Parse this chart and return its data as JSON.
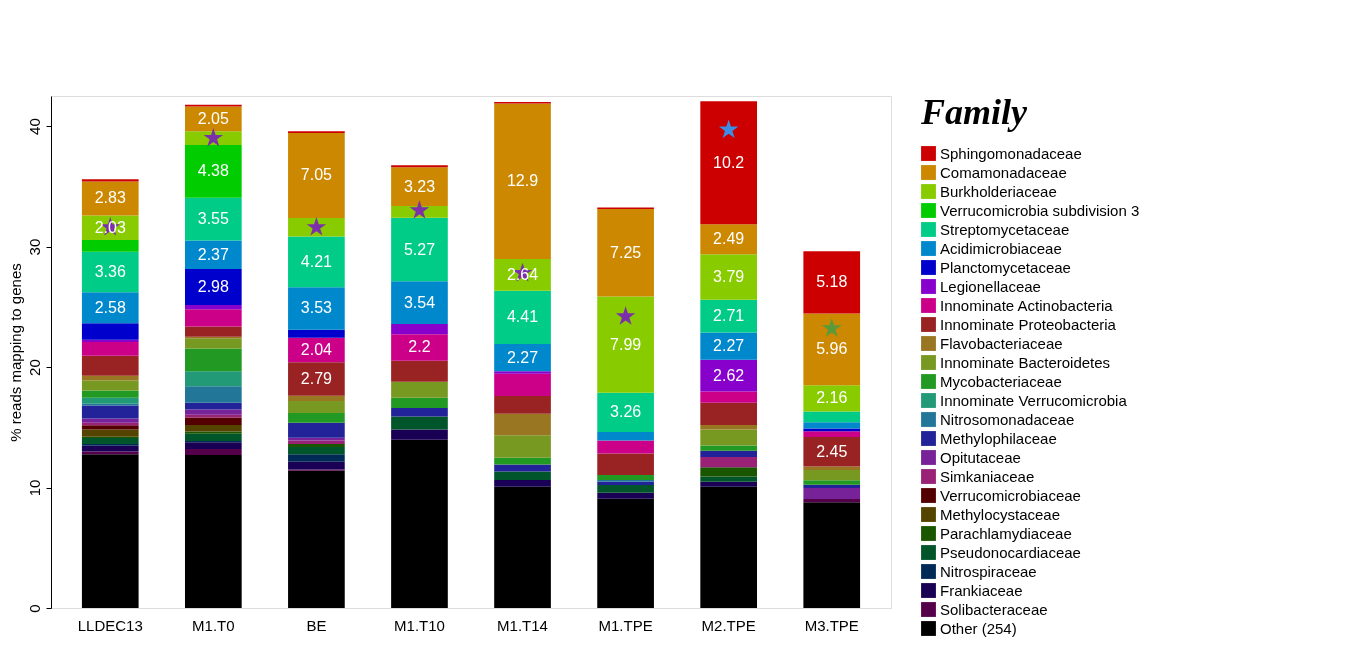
{
  "chart_data": {
    "type": "bar",
    "stacked": true,
    "ylabel": "% reads mapping to genes",
    "legend_title": "Family",
    "legend": "right",
    "grid": false,
    "categories": [
      "LLDEC13",
      "M1.T0",
      "BE",
      "M1.T10",
      "M1.T14",
      "M1.TPE",
      "M2.TPE",
      "M3.TPE"
    ],
    "ylim": [
      0,
      42.5
    ],
    "yticks": [
      0,
      10,
      20,
      30,
      40
    ],
    "series": [
      {
        "name": "Other (254)",
        "color": "#000000",
        "values": [
          12.76,
          12.71,
          11.4,
          13.96,
          10.06,
          9.06,
          10.06,
          8.77
        ]
      },
      {
        "name": "Solibacteraceae",
        "color": "#55004a",
        "values": [
          0.23,
          0.48,
          0.1,
          null,
          null,
          null,
          null,
          0.28
        ]
      },
      {
        "name": "Frankiaceae",
        "color": "#1a0055",
        "values": [
          0.48,
          0.57,
          0.64,
          0.85,
          0.57,
          0.51,
          0.43,
          null
        ]
      },
      {
        "name": "Nitrospiraceae",
        "color": "#002a55",
        "values": [
          0.15,
          0.1,
          0.63,
          null,
          null,
          null,
          null,
          null
        ]
      },
      {
        "name": "Pseudonocardiaceae",
        "color": "#00552a",
        "values": [
          0.5,
          0.6,
          0.6,
          1.08,
          0.71,
          0.63,
          0.43,
          null
        ]
      },
      {
        "name": "Parachlamydiaceae",
        "color": "#1a5500",
        "values": [
          0.1,
          0.2,
          0.25,
          null,
          null,
          null,
          0.77,
          null
        ]
      },
      {
        "name": "Methylocystaceae",
        "color": "#554400",
        "values": [
          0.6,
          0.53,
          null,
          null,
          null,
          null,
          null,
          null
        ]
      },
      {
        "name": "Verrucomicrobiaceae",
        "color": "#550000",
        "values": [
          0.35,
          0.62,
          null,
          null,
          null,
          null,
          null,
          null
        ]
      },
      {
        "name": "Simkaniaceae",
        "color": "#992277",
        "values": [
          0.2,
          0.23,
          0.28,
          null,
          null,
          null,
          0.85,
          null
        ]
      },
      {
        "name": "Opitutaceae",
        "color": "#772299",
        "values": [
          0.35,
          0.43,
          0.23,
          null,
          null,
          null,
          null,
          0.91
        ]
      },
      {
        "name": "Methylophilaceae",
        "color": "#222299",
        "values": [
          1.08,
          0.57,
          1.25,
          0.71,
          0.57,
          0.28,
          0.51,
          0.28
        ]
      },
      {
        "name": "Nitrosomonadaceae",
        "color": "#227799",
        "values": [
          0.15,
          1.36,
          null,
          null,
          null,
          0.14,
          null,
          null
        ]
      },
      {
        "name": "Innominate Verrucomicrobia",
        "color": "#229977",
        "values": [
          0.5,
          1.26,
          null,
          null,
          null,
          null,
          null,
          null
        ]
      },
      {
        "name": "Mycobacteriaceae",
        "color": "#229922",
        "values": [
          0.6,
          1.88,
          0.8,
          0.85,
          0.57,
          0.43,
          0.43,
          0.37
        ]
      },
      {
        "name": "Innominate Bacteroidetes",
        "color": "#779922",
        "values": [
          0.83,
          0.85,
          1.0,
          1.34,
          1.85,
          null,
          1.34,
          0.85
        ]
      },
      {
        "name": "Flavobacteriaceae",
        "color": "#997722",
        "values": [
          0.4,
          0.12,
          0.43,
          null,
          1.79,
          null,
          0.37,
          0.28
        ]
      },
      {
        "name": "Innominate Proteobacteria",
        "color": "#992222",
        "values": [
          1.65,
          0.85,
          2.79,
          1.74,
          1.48,
          1.77,
          1.85,
          2.45
        ],
        "value_labels": [
          null,
          null,
          "2.79",
          null,
          null,
          null,
          null,
          "2.45"
        ]
      },
      {
        "name": "Innominate Actinobacteria",
        "color": "#cc0088",
        "values": [
          1.14,
          1.43,
          2.04,
          2.2,
          1.85,
          1.08,
          0.94,
          0.48
        ],
        "value_labels": [
          null,
          null,
          "2.04",
          "2.2",
          null,
          null,
          null,
          null
        ]
      },
      {
        "name": "Legionellaceae",
        "color": "#8800cc",
        "values": [
          0.2,
          0.37,
          null,
          0.85,
          0.2,
          null,
          2.62,
          null
        ],
        "value_labels": [
          null,
          null,
          null,
          null,
          null,
          null,
          "2.62",
          null
        ]
      },
      {
        "name": "Planctomycetaceae",
        "color": "#0000cc",
        "values": [
          1.37,
          2.98,
          0.66,
          null,
          null,
          null,
          null,
          0.23
        ],
        "value_labels": [
          null,
          "2.98",
          null,
          null,
          null,
          null,
          null,
          null
        ]
      },
      {
        "name": "Acidimicrobiaceae",
        "color": "#0088cc",
        "values": [
          2.58,
          2.37,
          3.53,
          3.54,
          2.27,
          0.71,
          2.27,
          0.51
        ],
        "value_labels": [
          "2.58",
          "2.37",
          "3.53",
          "3.54",
          "2.27",
          null,
          "2.27",
          null
        ]
      },
      {
        "name": "Streptomycetaceae",
        "color": "#00cc88",
        "values": [
          3.36,
          3.55,
          4.21,
          5.27,
          4.41,
          3.26,
          2.71,
          0.91
        ],
        "value_labels": [
          "3.36",
          "3.55",
          "4.21",
          "5.27",
          "4.41",
          "3.26",
          "2.71",
          null
        ]
      },
      {
        "name": "Verrucomicrobia subdivision 3",
        "color": "#00cc00",
        "values": [
          0.97,
          4.38,
          null,
          null,
          null,
          null,
          null,
          null
        ],
        "value_labels": [
          null,
          "4.38",
          null,
          null,
          null,
          null,
          null,
          null
        ]
      },
      {
        "name": "Burkholderiaceae",
        "color": "#88cc00",
        "values": [
          2.03,
          1.14,
          1.54,
          0.97,
          2.64,
          7.99,
          3.79,
          2.16
        ],
        "value_labels": [
          "2.03",
          null,
          null,
          null,
          "2.64",
          "7.99",
          "3.79",
          "2.16"
        ]
      },
      {
        "name": "Comamonadaceae",
        "color": "#cc8800",
        "values": [
          2.83,
          2.05,
          7.05,
          3.23,
          12.9,
          7.25,
          2.49,
          5.96
        ],
        "value_labels": [
          "2.83",
          "2.05",
          "7.05",
          "3.23",
          "12.9",
          "7.25",
          "2.49",
          "5.96"
        ]
      },
      {
        "name": "Sphingomonadaceae",
        "color": "#cc0000",
        "values": [
          0.17,
          0.14,
          0.14,
          0.17,
          0.14,
          0.14,
          10.2,
          5.18
        ],
        "value_labels": [
          null,
          null,
          null,
          null,
          null,
          null,
          "10.2",
          "5.18"
        ]
      },
      {
        "type": "scatter",
        "marker": "star",
        "x": [
          "LLDEC13",
          "M1.T0",
          "BE",
          "M1.T10",
          "M1.T14",
          "M1.TPE",
          "M2.TPE",
          "M3.TPE"
        ],
        "values": [
          31.6,
          39.0,
          31.6,
          33.0,
          27.8,
          24.2,
          39.7,
          23.2
        ],
        "colors": [
          "#7b2fa8",
          "#7b2fa8",
          "#7b2fa8",
          "#7b2fa8",
          "#7b2fa8",
          "#7b2fa8",
          "#3a8ee6",
          "#5a9a3a"
        ]
      }
    ]
  }
}
